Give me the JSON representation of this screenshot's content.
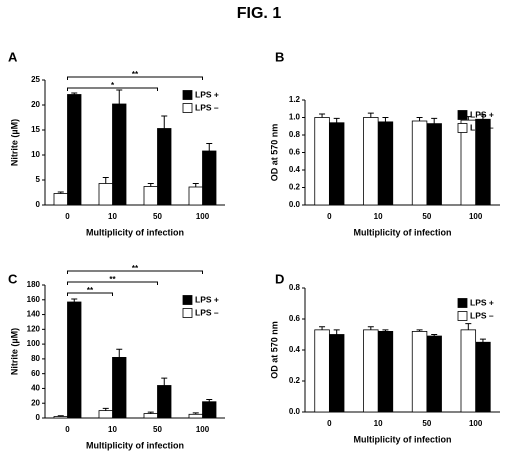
{
  "title": "FIG. 1",
  "chart_data": [
    {
      "type": "bar",
      "panel": "A",
      "x_label": "Multiplicity of infection",
      "y_label": "Nitrite (µM)",
      "categories": [
        "0",
        "10",
        "50",
        "100"
      ],
      "legend": "upper right",
      "ylim": [
        0,
        25
      ],
      "yticks": [
        0,
        5,
        10,
        15,
        20,
        25
      ],
      "series": [
        {
          "name": "LPS +",
          "color": "#000000",
          "values": [
            22.1,
            20.2,
            15.3,
            10.8
          ],
          "errors": [
            0.3,
            2.8,
            2.5,
            1.5
          ]
        },
        {
          "name": "LPS –",
          "color": "#ffffff",
          "values": [
            2.3,
            4.3,
            3.7,
            3.6
          ],
          "errors": [
            0.3,
            1.2,
            0.6,
            0.7
          ]
        }
      ],
      "annotations": [
        {
          "text": "*",
          "from": "0",
          "to": "50"
        },
        {
          "text": "**",
          "from": "0",
          "to": "100"
        }
      ]
    },
    {
      "type": "bar",
      "panel": "B",
      "x_label": "Multiplicity of infection",
      "y_label": "OD at 570 nm",
      "categories": [
        "0",
        "10",
        "50",
        "100"
      ],
      "legend": "upper right",
      "ylim": [
        0,
        1.2
      ],
      "yticks": [
        {
          "value": 0,
          "label": "0.0"
        },
        0.2,
        0.4,
        0.6,
        0.8,
        {
          "value": 1,
          "label": "1.0"
        },
        1.2
      ],
      "series": [
        {
          "name": "LPS +",
          "color": "#000000",
          "values": [
            0.94,
            0.95,
            0.93,
            0.98
          ],
          "errors": [
            0.05,
            0.05,
            0.06,
            0.05
          ]
        },
        {
          "name": "LPS –",
          "color": "#ffffff",
          "values": [
            1.0,
            1.0,
            0.96,
            0.97
          ],
          "errors": [
            0.04,
            0.05,
            0.04,
            0.04
          ]
        }
      ]
    },
    {
      "type": "bar",
      "panel": "C",
      "x_label": "Multiplicity of infection",
      "y_label": "Nitrite (µM)",
      "categories": [
        "0",
        "10",
        "50",
        "100"
      ],
      "legend": "upper right",
      "ylim": [
        0,
        180
      ],
      "yticks": [
        0,
        20,
        40,
        60,
        80,
        100,
        120,
        140,
        160,
        180
      ],
      "series": [
        {
          "name": "LPS +",
          "color": "#000000",
          "values": [
            157,
            82,
            44,
            22
          ],
          "errors": [
            4,
            11,
            10,
            3
          ]
        },
        {
          "name": "LPS –",
          "color": "#ffffff",
          "values": [
            2,
            10,
            6,
            5
          ],
          "errors": [
            1,
            3,
            2,
            2
          ]
        }
      ],
      "annotations": [
        {
          "text": "**",
          "from": "0",
          "to": "10"
        },
        {
          "text": "**",
          "from": "0",
          "to": "50"
        },
        {
          "text": "**",
          "from": "0",
          "to": "100"
        }
      ]
    },
    {
      "type": "bar",
      "panel": "D",
      "x_label": "Multiplicity of infection",
      "y_label": "OD at 570 nm",
      "categories": [
        "0",
        "10",
        "50",
        "100"
      ],
      "legend": "upper right",
      "ylim": [
        0,
        0.8
      ],
      "yticks": [
        {
          "value": 0,
          "label": "0.0"
        },
        0.2,
        0.4,
        0.6,
        0.8
      ],
      "series": [
        {
          "name": "LPS +",
          "color": "#000000",
          "values": [
            0.5,
            0.52,
            0.49,
            0.45
          ],
          "errors": [
            0.03,
            0.01,
            0.01,
            0.02
          ]
        },
        {
          "name": "LPS –",
          "color": "#ffffff",
          "values": [
            0.53,
            0.53,
            0.52,
            0.53
          ],
          "errors": [
            0.02,
            0.02,
            0.01,
            0.04
          ]
        }
      ]
    }
  ]
}
